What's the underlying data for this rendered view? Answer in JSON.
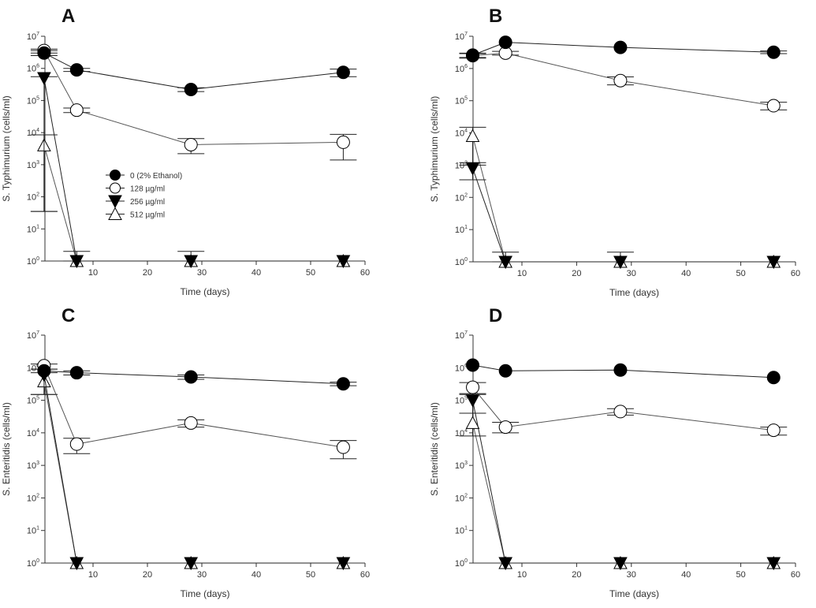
{
  "chart_data": [
    {
      "type": "line",
      "panel_label": "A",
      "xlabel": "Time (days)",
      "ylabel": "S. Typhimurium (cells/ml)",
      "xlim": [
        1,
        60
      ],
      "ylim": [
        1,
        10000000
      ],
      "yscale": "log",
      "xticks": [
        10,
        20,
        30,
        40,
        50,
        60
      ],
      "x": [
        1,
        7,
        28,
        56
      ],
      "legend": "center-left",
      "series": [
        {
          "name": "0 (2% Ethanol)",
          "marker": "filled-circle",
          "values": [
            3000000,
            900000,
            220000,
            750000
          ],
          "err": [
            [
              2500000,
              3600000
            ],
            [
              800000,
              1000000
            ],
            [
              190000,
              250000
            ],
            [
              550000,
              950000
            ]
          ]
        },
        {
          "name": "128 µg/ml",
          "marker": "open-circle",
          "values": [
            3600000,
            50000,
            4200,
            5000
          ],
          "err": [
            [
              3000000,
              4000000
            ],
            [
              42000,
              58000
            ],
            [
              2200,
              6500
            ],
            [
              1400,
              8800
            ]
          ]
        },
        {
          "name": "256 µg/ml",
          "marker": "filled-triangle-down",
          "values": [
            500000,
            1,
            1,
            1
          ],
          "err": [
            [
              35,
              550000
            ],
            [
              1,
              2
            ],
            [
              1,
              2
            ],
            null
          ]
        },
        {
          "name": "512 µg/ml",
          "marker": "open-triangle-up",
          "values": [
            4000,
            1,
            1,
            1
          ],
          "err": [
            [
              35,
              8500
            ],
            null,
            null,
            null
          ]
        }
      ]
    },
    {
      "type": "line",
      "panel_label": "B",
      "xlabel": "Time (days)",
      "ylabel": "S. Typhimurium (cells/ml)",
      "xlim": [
        1,
        60
      ],
      "ylim": [
        1,
        10000000
      ],
      "yscale": "log",
      "xticks": [
        10,
        20,
        30,
        40,
        50,
        60
      ],
      "x": [
        1,
        7,
        28,
        56
      ],
      "series": [
        {
          "name": "0 (2% Ethanol)",
          "marker": "filled-circle",
          "values": [
            2600000,
            6500000,
            4500000,
            3200000
          ],
          "err": [
            [
              2200000,
              3000000
            ],
            null,
            null,
            [
              2900000,
              3500000
            ]
          ]
        },
        {
          "name": "128 µg/ml",
          "marker": "open-circle",
          "values": [
            2500000,
            3000000,
            420000,
            70000
          ],
          "err": [
            [
              2100000,
              2900000
            ],
            [
              2600000,
              3400000
            ],
            [
              310000,
              550000
            ],
            [
              52000,
              90000
            ]
          ]
        },
        {
          "name": "256 µg/ml",
          "marker": "filled-triangle-down",
          "values": [
            800,
            1,
            1,
            1
          ],
          "err": [
            [
              350,
              1200
            ],
            null,
            null,
            null
          ]
        },
        {
          "name": "512 µg/ml",
          "marker": "open-triangle-up",
          "values": [
            8000,
            1,
            1,
            1
          ],
          "err": [
            [
              1000,
              15000
            ],
            [
              1,
              2
            ],
            [
              1,
              2
            ],
            null
          ]
        }
      ]
    },
    {
      "type": "line",
      "panel_label": "C",
      "xlabel": "Time (days)",
      "ylabel": "S. Enteritidis (cells/ml)",
      "xlim": [
        1,
        60
      ],
      "ylim": [
        1,
        10000000
      ],
      "yscale": "log",
      "xticks": [
        10,
        20,
        30,
        40,
        50,
        60
      ],
      "x": [
        1,
        7,
        28,
        56
      ],
      "series": [
        {
          "name": "0 (2% Ethanol)",
          "marker": "filled-circle",
          "values": [
            800000,
            700000,
            520000,
            320000
          ],
          "err": [
            null,
            [
              600000,
              800000
            ],
            [
              440000,
              600000
            ],
            [
              280000,
              360000
            ]
          ]
        },
        {
          "name": "128 µg/ml",
          "marker": "open-circle",
          "values": [
            1150000,
            4500,
            20000,
            3600
          ],
          "err": [
            [
              900000,
              1300000
            ],
            [
              2300,
              6800
            ],
            [
              15000,
              25000
            ],
            [
              1600,
              5800
            ]
          ]
        },
        {
          "name": "256 µg/ml",
          "marker": "filled-triangle-down",
          "values": [
            600000,
            1,
            1,
            1
          ],
          "err": [
            [
              150000,
              900000
            ],
            null,
            null,
            null
          ]
        },
        {
          "name": "512 µg/ml",
          "marker": "open-triangle-up",
          "values": [
            380000,
            1,
            1,
            1
          ],
          "err": [
            [
              150000,
              700000
            ],
            null,
            null,
            null
          ]
        }
      ]
    },
    {
      "type": "line",
      "panel_label": "D",
      "xlabel": "Time (days)",
      "ylabel": "S. Enteritidis (cells/ml)",
      "xlim": [
        1,
        60
      ],
      "ylim": [
        1,
        10000000
      ],
      "yscale": "log",
      "xticks": [
        10,
        20,
        30,
        40,
        50,
        60
      ],
      "x": [
        1,
        7,
        28,
        56
      ],
      "series": [
        {
          "name": "0 (2% Ethanol)",
          "marker": "filled-circle",
          "values": [
            1200000,
            800000,
            850000,
            500000
          ],
          "err": [
            null,
            null,
            null,
            null
          ]
        },
        {
          "name": "128 µg/ml",
          "marker": "open-circle",
          "values": [
            250000,
            15000,
            45000,
            12000
          ],
          "err": [
            [
              150000,
              350000
            ],
            [
              10000,
              21000
            ],
            [
              35000,
              55000
            ],
            [
              8500,
              15000
            ]
          ]
        },
        {
          "name": "256 µg/ml",
          "marker": "filled-triangle-down",
          "values": [
            100000,
            1,
            1,
            1
          ],
          "err": [
            [
              40000,
              160000
            ],
            null,
            null,
            null
          ]
        },
        {
          "name": "512 µg/ml",
          "marker": "open-triangle-up",
          "values": [
            20000,
            1,
            1,
            1
          ],
          "err": [
            [
              8000,
              40000
            ],
            null,
            null,
            null
          ]
        }
      ]
    }
  ]
}
